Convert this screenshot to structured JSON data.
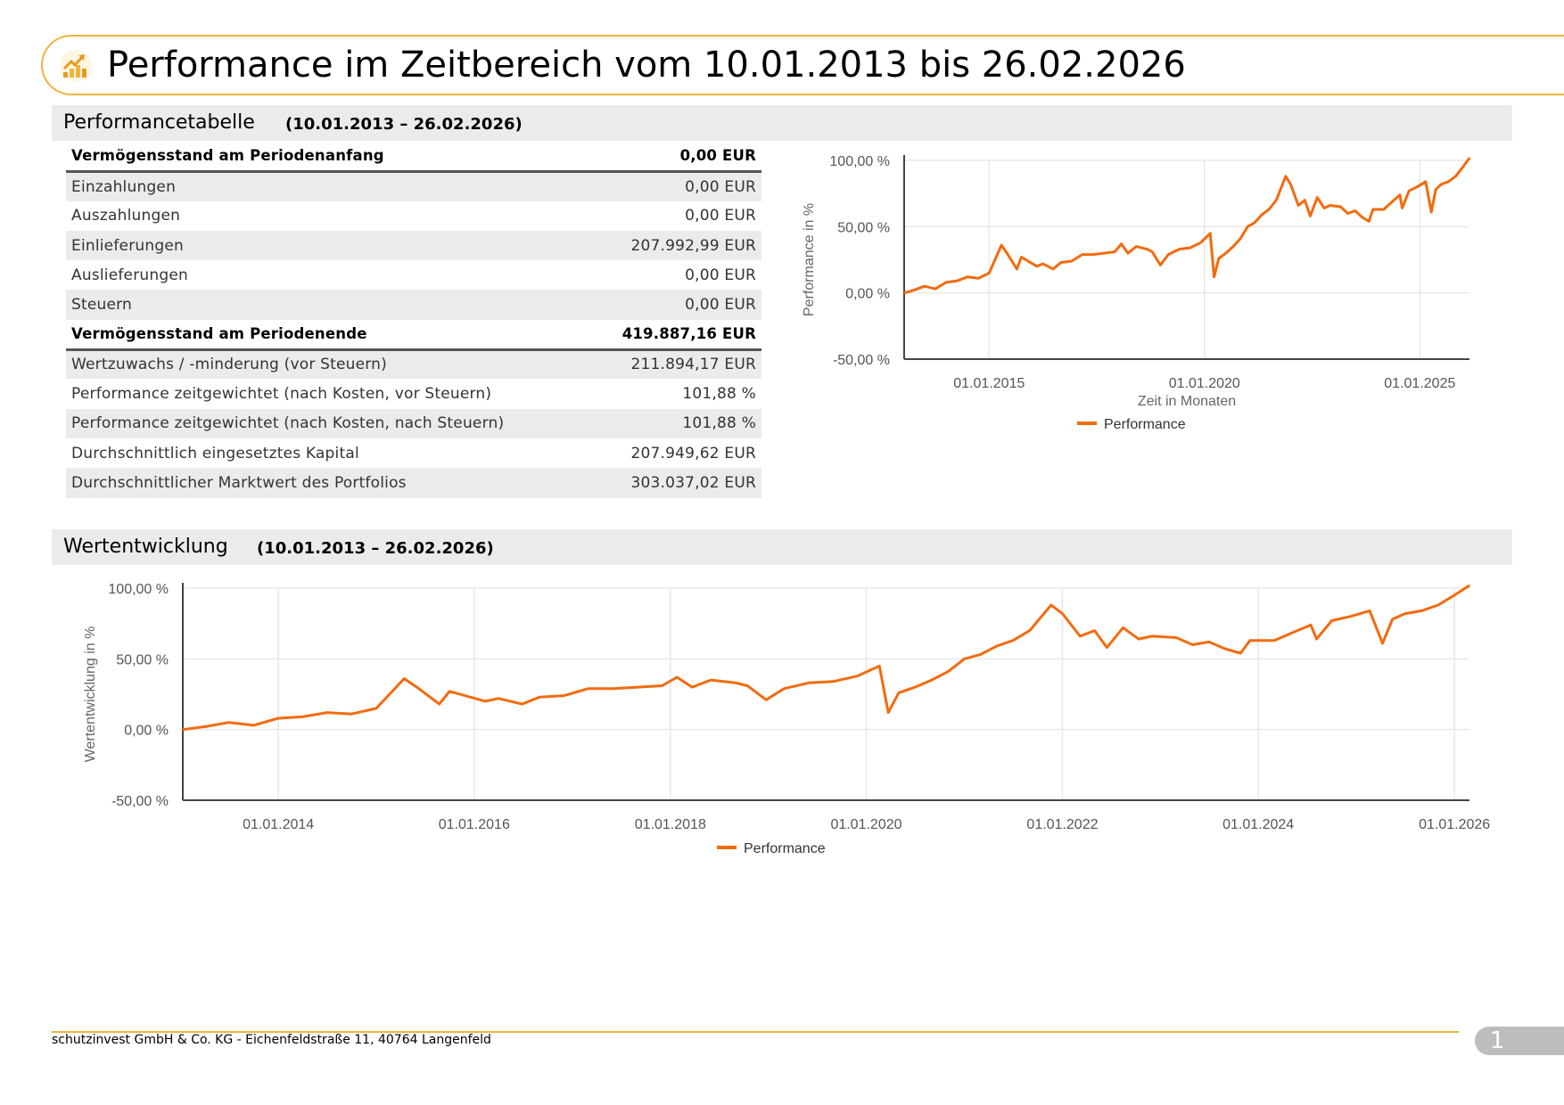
{
  "header": {
    "title": "Performance im Zeitbereich vom 10.01.2013 bis 26.02.2026",
    "icon": "performance-chart-icon"
  },
  "table_section": {
    "title": "Performancetabelle",
    "range": "(10.01.2013 – 26.02.2026)"
  },
  "perf_table": {
    "rows": [
      {
        "label": "Vermögensstand am Periodenanfang",
        "value": "0,00 EUR",
        "bold": true,
        "shade": false
      },
      {
        "label": "Einzahlungen",
        "value": "0,00 EUR",
        "bold": false,
        "shade": true
      },
      {
        "label": "Auszahlungen",
        "value": "0,00 EUR",
        "bold": false,
        "shade": false
      },
      {
        "label": "Einlieferungen",
        "value": "207.992,99 EUR",
        "bold": false,
        "shade": true
      },
      {
        "label": "Auslieferungen",
        "value": "0,00 EUR",
        "bold": false,
        "shade": false
      },
      {
        "label": "Steuern",
        "value": "0,00 EUR",
        "bold": false,
        "shade": true
      },
      {
        "label": "Vermögensstand am Periodenende",
        "value": "419.887,16 EUR",
        "bold": true,
        "shade": false
      },
      {
        "label": "Wertzuwachs / -minderung (vor Steuern)",
        "value": "211.894,17 EUR",
        "bold": false,
        "shade": true
      },
      {
        "label": "Performance zeitgewichtet (nach Kosten, vor Steuern)",
        "value": "101,88 %",
        "bold": false,
        "shade": false
      },
      {
        "label": "Performance zeitgewichtet (nach Kosten, nach Steuern)",
        "value": "101,88 %",
        "bold": false,
        "shade": true
      },
      {
        "label": "Durchschnittlich eingesetztes Kapital",
        "value": "207.949,62 EUR",
        "bold": false,
        "shade": false
      },
      {
        "label": "Durchschnittlicher Marktwert des Portfolios",
        "value": "303.037,02 EUR",
        "bold": false,
        "shade": true
      }
    ]
  },
  "value_section": {
    "title": "Wertentwicklung",
    "range": "(10.01.2013 – 26.02.2026)"
  },
  "footer": {
    "company": "schutzinvest GmbH & Co. KG - Eichenfeldstraße 11, 40764 Langenfeld",
    "page": "1"
  },
  "colors": {
    "accent": "#f0b33a",
    "series": "#f26b0f",
    "shade": "#ebebeb"
  },
  "chart_data": [
    {
      "type": "line",
      "id": "performance-small",
      "xlabel": "Zeit in Monaten",
      "ylabel": "Performance in %",
      "xlim": [
        "2013-01-10",
        "2026-02-26"
      ],
      "ylim": [
        -50,
        100
      ],
      "yticks": [
        100,
        50,
        0,
        -50
      ],
      "ytick_labels": [
        "100,00 %",
        "50,00 %",
        "0,00 %",
        "-50,00 %"
      ],
      "xtick_dates": [
        "2015-01-01",
        "2020-01-01",
        "2025-01-01"
      ],
      "xtick_labels": [
        "01.01.2015",
        "01.01.2020",
        "01.01.2025"
      ],
      "grid": true,
      "legend": "bottom",
      "series": [
        {
          "name": "Performance",
          "x": [
            "2013-01-10",
            "2013-04-01",
            "2013-07-01",
            "2013-10-01",
            "2014-01-01",
            "2014-04-01",
            "2014-07-01",
            "2014-10-01",
            "2015-01-01",
            "2015-04-15",
            "2015-06-01",
            "2015-08-24",
            "2015-10-01",
            "2016-02-11",
            "2016-04-01",
            "2016-06-27",
            "2016-09-01",
            "2016-12-01",
            "2017-03-01",
            "2017-06-01",
            "2017-09-01",
            "2017-12-01",
            "2018-01-26",
            "2018-03-23",
            "2018-06-01",
            "2018-09-01",
            "2018-10-15",
            "2018-12-24",
            "2019-03-01",
            "2019-06-01",
            "2019-09-01",
            "2019-12-01",
            "2020-02-19",
            "2020-03-23",
            "2020-05-01",
            "2020-07-01",
            "2020-09-01",
            "2020-11-01",
            "2021-01-01",
            "2021-03-01",
            "2021-05-01",
            "2021-07-01",
            "2021-09-01",
            "2021-11-20",
            "2022-01-01",
            "2022-03-08",
            "2022-05-01",
            "2022-06-16",
            "2022-08-15",
            "2022-10-12",
            "2022-12-01",
            "2023-03-01",
            "2023-05-01",
            "2023-07-01",
            "2023-09-01",
            "2023-10-27",
            "2023-12-01",
            "2024-03-01",
            "2024-05-01",
            "2024-07-15",
            "2024-08-05",
            "2024-10-01",
            "2024-12-10",
            "2025-02-19",
            "2025-04-08",
            "2025-05-15",
            "2025-07-01",
            "2025-09-01",
            "2025-11-01",
            "2026-01-01",
            "2026-02-26"
          ],
          "values": [
            0,
            2,
            5,
            3,
            8,
            9,
            12,
            11,
            15,
            36,
            30,
            18,
            27,
            20,
            22,
            18,
            23,
            24,
            29,
            29,
            30,
            31,
            37,
            30,
            35,
            33,
            31,
            21,
            29,
            33,
            34,
            38,
            45,
            12,
            26,
            30,
            35,
            41,
            50,
            53,
            59,
            63,
            70,
            88,
            82,
            66,
            70,
            58,
            72,
            64,
            66,
            65,
            60,
            62,
            57,
            54,
            63,
            63,
            68,
            74,
            64,
            77,
            80,
            84,
            61,
            78,
            82,
            84,
            88,
            95,
            101.88
          ]
        }
      ]
    },
    {
      "type": "line",
      "id": "wertentwicklung-large",
      "xlabel": "",
      "ylabel": "Wertentwicklung in %",
      "xlim": [
        "2013-01-10",
        "2026-02-26"
      ],
      "ylim": [
        -50,
        100
      ],
      "yticks": [
        100,
        50,
        0,
        -50
      ],
      "ytick_labels": [
        "100,00 %",
        "50,00 %",
        "0,00 %",
        "-50,00 %"
      ],
      "xtick_dates": [
        "2014-01-01",
        "2016-01-01",
        "2018-01-01",
        "2020-01-01",
        "2022-01-01",
        "2024-01-01",
        "2026-01-01"
      ],
      "xtick_labels": [
        "01.01.2014",
        "01.01.2016",
        "01.01.2018",
        "01.01.2020",
        "01.01.2022",
        "01.01.2024",
        "01.01.2026"
      ],
      "grid": true,
      "legend": "bottom",
      "series": [
        {
          "name": "Performance",
          "x": [
            "2013-01-10",
            "2013-04-01",
            "2013-07-01",
            "2013-10-01",
            "2014-01-01",
            "2014-04-01",
            "2014-07-01",
            "2014-10-01",
            "2015-01-01",
            "2015-04-15",
            "2015-06-01",
            "2015-08-24",
            "2015-10-01",
            "2016-02-11",
            "2016-04-01",
            "2016-06-27",
            "2016-09-01",
            "2016-12-01",
            "2017-03-01",
            "2017-06-01",
            "2017-09-01",
            "2017-12-01",
            "2018-01-26",
            "2018-03-23",
            "2018-06-01",
            "2018-09-01",
            "2018-10-15",
            "2018-12-24",
            "2019-03-01",
            "2019-06-01",
            "2019-09-01",
            "2019-12-01",
            "2020-02-19",
            "2020-03-23",
            "2020-05-01",
            "2020-07-01",
            "2020-09-01",
            "2020-11-01",
            "2021-01-01",
            "2021-03-01",
            "2021-05-01",
            "2021-07-01",
            "2021-09-01",
            "2021-11-20",
            "2022-01-01",
            "2022-03-08",
            "2022-05-01",
            "2022-06-16",
            "2022-08-15",
            "2022-10-12",
            "2022-12-01",
            "2023-03-01",
            "2023-05-01",
            "2023-07-01",
            "2023-09-01",
            "2023-10-27",
            "2023-12-01",
            "2024-03-01",
            "2024-05-01",
            "2024-07-15",
            "2024-08-05",
            "2024-10-01",
            "2024-12-10",
            "2025-02-19",
            "2025-04-08",
            "2025-05-15",
            "2025-07-01",
            "2025-09-01",
            "2025-11-01",
            "2026-01-01",
            "2026-02-26"
          ],
          "values": [
            0,
            2,
            5,
            3,
            8,
            9,
            12,
            11,
            15,
            36,
            30,
            18,
            27,
            20,
            22,
            18,
            23,
            24,
            29,
            29,
            30,
            31,
            37,
            30,
            35,
            33,
            31,
            21,
            29,
            33,
            34,
            38,
            45,
            12,
            26,
            30,
            35,
            41,
            50,
            53,
            59,
            63,
            70,
            88,
            82,
            66,
            70,
            58,
            72,
            64,
            66,
            65,
            60,
            62,
            57,
            54,
            63,
            63,
            68,
            74,
            64,
            77,
            80,
            84,
            61,
            78,
            82,
            84,
            88,
            95,
            101.88
          ]
        }
      ]
    }
  ]
}
